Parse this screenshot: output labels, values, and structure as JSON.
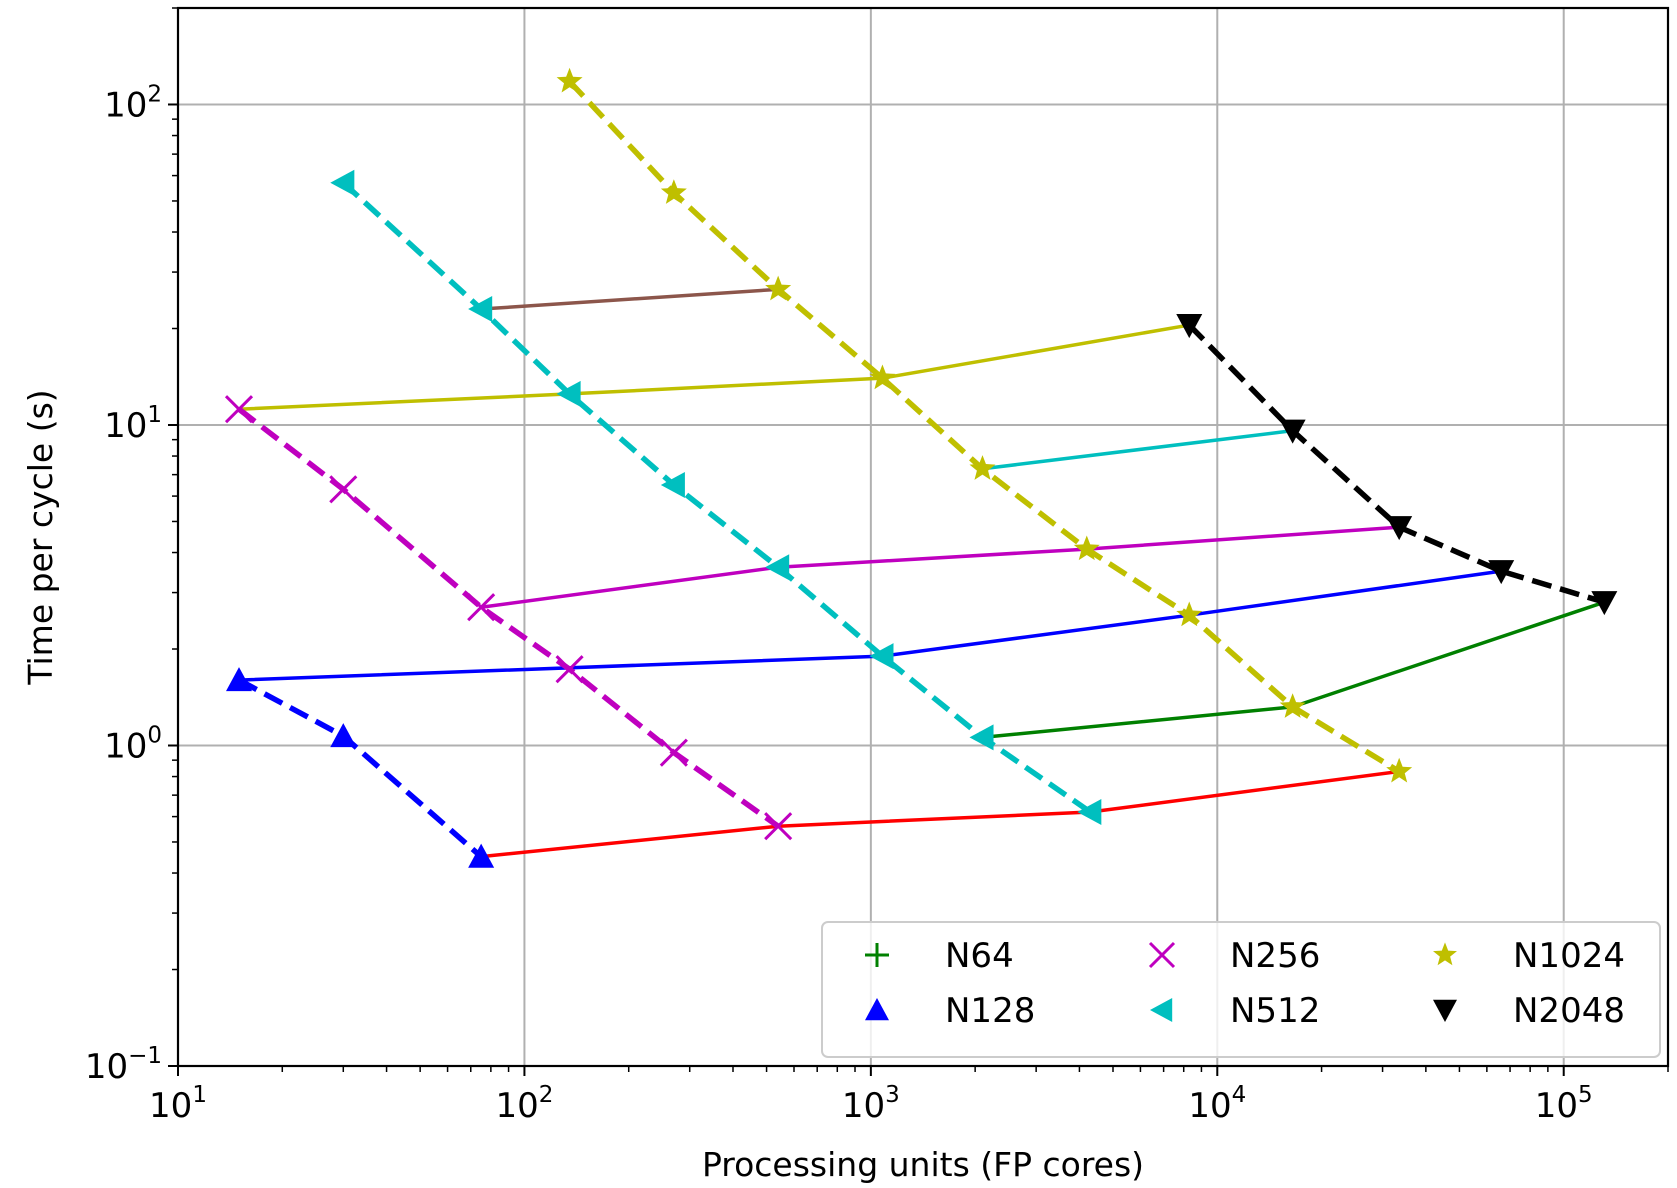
{
  "chart_data": {
    "type": "line",
    "title": "",
    "xlabel": "Processing units (FP cores)",
    "ylabel": "Time per cycle (s)",
    "xscale": "log",
    "yscale": "log",
    "xlim": [
      10,
      200000
    ],
    "ylim": [
      0.1,
      200
    ],
    "grid": true,
    "legend_position": "lower right",
    "x_ticks": [
      {
        "base": "10",
        "exp": "1",
        "value": 10
      },
      {
        "base": "10",
        "exp": "2",
        "value": 100
      },
      {
        "base": "10",
        "exp": "3",
        "value": 1000
      },
      {
        "base": "10",
        "exp": "4",
        "value": 10000
      },
      {
        "base": "10",
        "exp": "5",
        "value": 100000
      }
    ],
    "y_ticks": [
      {
        "base": "10",
        "exp": "−1",
        "value": 0.1
      },
      {
        "base": "10",
        "exp": "0",
        "value": 1
      },
      {
        "base": "10",
        "exp": "1",
        "value": 10
      },
      {
        "base": "10",
        "exp": "2",
        "value": 100
      }
    ],
    "series": [
      {
        "name": "N64",
        "color": "#008000",
        "marker": "plus",
        "dashed": true,
        "x": [],
        "y": []
      },
      {
        "name": "N128",
        "color": "#0000ff",
        "marker": "triangle-up",
        "dashed": true,
        "x": [
          15,
          30,
          75
        ],
        "y": [
          1.6,
          1.07,
          0.45
        ]
      },
      {
        "name": "N256",
        "color": "#bf00bf",
        "marker": "x",
        "dashed": true,
        "x": [
          15,
          30,
          75,
          135,
          270,
          540
        ],
        "y": [
          11.2,
          6.3,
          2.7,
          1.73,
          0.95,
          0.56
        ]
      },
      {
        "name": "N512",
        "color": "#00bfbf",
        "marker": "triangle-left",
        "dashed": true,
        "x": [
          30,
          75,
          135,
          270,
          540,
          1080,
          2100,
          4300
        ],
        "y": [
          57,
          23,
          12.5,
          6.5,
          3.6,
          1.9,
          1.06,
          0.62
        ]
      },
      {
        "name": "N1024",
        "color": "#bfbf00",
        "marker": "star",
        "dashed": true,
        "x": [
          135,
          270,
          540,
          1080,
          2100,
          4200,
          8300,
          16500,
          33500
        ],
        "y": [
          118,
          53,
          26.5,
          14,
          7.3,
          4.1,
          2.55,
          1.32,
          0.83
        ]
      },
      {
        "name": "N2048",
        "color": "#000000",
        "marker": "triangle-down",
        "dashed": true,
        "x": [
          8300,
          16500,
          33500,
          66000,
          131000
        ],
        "y": [
          20.5,
          9.6,
          4.8,
          3.5,
          2.8
        ]
      }
    ],
    "connector_lines": [
      {
        "color": "#ff0000",
        "x": [
          75,
          540,
          4300,
          33500
        ],
        "y": [
          0.45,
          0.56,
          0.62,
          0.83
        ]
      },
      {
        "color": "#0000ff",
        "x": [
          15,
          1080,
          8300,
          66000
        ],
        "y": [
          1.6,
          1.9,
          2.55,
          3.5
        ]
      },
      {
        "color": "#bf00bf",
        "x": [
          75,
          540,
          4200,
          33500
        ],
        "y": [
          2.7,
          3.6,
          4.1,
          4.8
        ]
      },
      {
        "color": "#00bfbf",
        "x": [
          2100,
          16500
        ],
        "y": [
          7.3,
          9.6
        ]
      },
      {
        "color": "#bfbf00",
        "x": [
          15,
          135,
          1080,
          8300
        ],
        "y": [
          11.2,
          12.5,
          14,
          20.5
        ]
      },
      {
        "color": "#8c564b",
        "x": [
          75,
          540
        ],
        "y": [
          23,
          26.5
        ]
      },
      {
        "color": "#008000",
        "x": [
          2100,
          16500,
          131000
        ],
        "y": [
          1.06,
          1.32,
          2.8
        ]
      }
    ]
  }
}
